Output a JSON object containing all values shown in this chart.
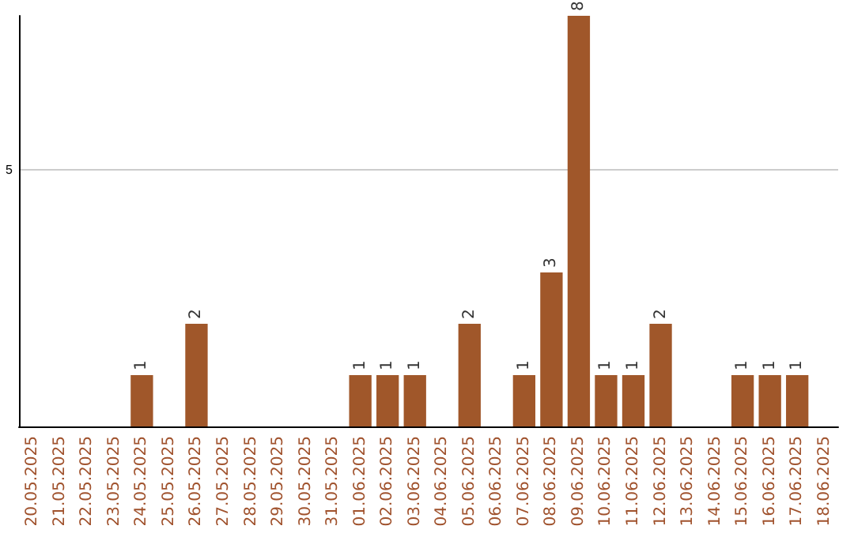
{
  "chart_data": {
    "type": "bar",
    "categories": [
      "20.05.2025",
      "21.05.2025",
      "22.05.2025",
      "23.05.2025",
      "24.05.2025",
      "25.05.2025",
      "26.05.2025",
      "27.05.2025",
      "28.05.2025",
      "29.05.2025",
      "30.05.2025",
      "31.05.2025",
      "01.06.2025",
      "02.06.2025",
      "03.06.2025",
      "04.06.2025",
      "05.06.2025",
      "06.06.2025",
      "07.06.2025",
      "08.06.2025",
      "09.06.2025",
      "10.06.2025",
      "11.06.2025",
      "12.06.2025",
      "13.06.2025",
      "14.06.2025",
      "15.06.2025",
      "16.06.2025",
      "17.06.2025",
      "18.06.2025"
    ],
    "values": [
      0,
      0,
      0,
      0,
      1,
      0,
      2,
      0,
      0,
      0,
      0,
      0,
      1,
      1,
      1,
      0,
      2,
      0,
      1,
      3,
      8,
      1,
      1,
      2,
      0,
      0,
      1,
      1,
      1,
      0
    ],
    "value_labels": [
      null,
      null,
      null,
      null,
      "1",
      null,
      "2",
      null,
      null,
      null,
      null,
      null,
      "1",
      "1",
      "1",
      null,
      "2",
      null,
      "1",
      "3",
      "8",
      "1",
      "1",
      "2",
      null,
      null,
      "1",
      "1",
      "1",
      null
    ],
    "color": "#a0572a",
    "ylim": [
      0,
      8
    ],
    "yticks": [
      5
    ],
    "grid": "y"
  }
}
